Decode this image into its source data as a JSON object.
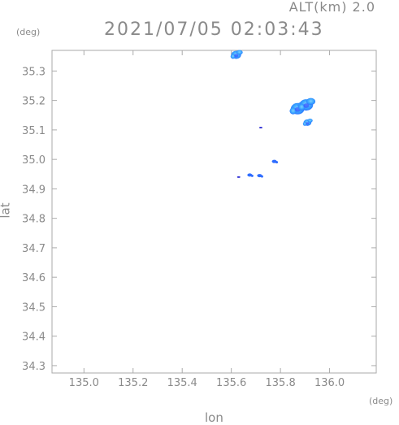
{
  "header": {
    "altitude": "ALT(km) 2.0",
    "timestamp": "2021/07/05 02:03:43"
  },
  "chart_data": {
    "type": "scatter",
    "title": "",
    "xlabel": "lon",
    "ylabel": "lat",
    "x_unit": "(deg)",
    "y_unit": "(deg)",
    "xlim": [
      134.87,
      136.19
    ],
    "ylim": [
      34.275,
      35.37
    ],
    "x_ticks": [
      "135.0",
      "135.2",
      "135.4",
      "135.6",
      "135.8",
      "136.0"
    ],
    "y_ticks": [
      "34.3",
      "34.4",
      "34.5",
      "34.6",
      "34.7",
      "34.8",
      "34.9",
      "35.0",
      "35.1",
      "35.2",
      "35.3"
    ],
    "grid": false,
    "colors": {
      "frame": "#aaaaaa",
      "text": "#8a8a8a",
      "echo_light": "#39a6ff",
      "echo_mid": "#2f6dff",
      "echo_dark": "#3333d6"
    },
    "echoes": [
      {
        "lon": 135.62,
        "lat": 35.355,
        "intensity": "light"
      },
      {
        "lon": 135.87,
        "lat": 35.172,
        "intensity": "light"
      },
      {
        "lon": 135.905,
        "lat": 35.185,
        "intensity": "light"
      },
      {
        "lon": 135.91,
        "lat": 35.125,
        "intensity": "light"
      },
      {
        "lon": 135.72,
        "lat": 35.108,
        "intensity": "dark"
      },
      {
        "lon": 135.775,
        "lat": 34.993,
        "intensity": "mid"
      },
      {
        "lon": 135.63,
        "lat": 34.94,
        "intensity": "dark"
      },
      {
        "lon": 135.675,
        "lat": 34.947,
        "intensity": "mid"
      },
      {
        "lon": 135.715,
        "lat": 34.945,
        "intensity": "mid"
      }
    ]
  }
}
